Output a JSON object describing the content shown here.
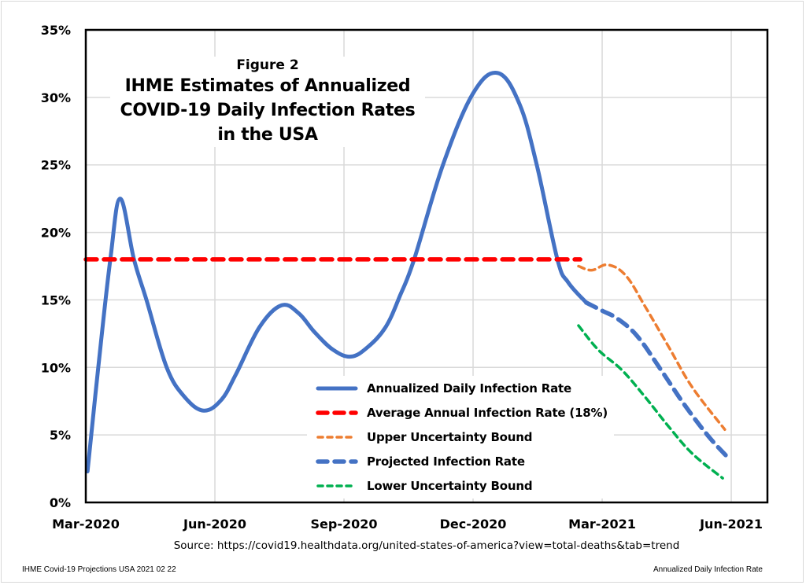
{
  "footer": {
    "source": "Source:  https://covid19.healthdata.org/united-states-of-america?view=total-deaths&tab=trend",
    "left_note": "IHME Covid-19 Projections USA 2021 02 22",
    "right_note": "Annualized Daily Infection Rate"
  },
  "chart_data": {
    "type": "line",
    "figure_label": "Figure 2",
    "title_lines": [
      "IHME Estimates of Annualized",
      "COVID-19 Daily Infection Rates",
      "in the USA"
    ],
    "title": "IHME Estimates of Annualized COVID-19 Daily Infection Rates in the USA",
    "xlabel": "",
    "ylabel": "",
    "x_unit": "months since Mar-2020",
    "x_ticks": [
      {
        "value": 0,
        "label": "Mar-2020"
      },
      {
        "value": 3,
        "label": "Jun-2020"
      },
      {
        "value": 6,
        "label": "Sep-2020"
      },
      {
        "value": 9,
        "label": "Dec-2020"
      },
      {
        "value": 12,
        "label": "Mar-2021"
      },
      {
        "value": 15,
        "label": "Jun-2021"
      }
    ],
    "xlim": [
      0,
      16.87
    ],
    "y_ticks": [
      {
        "value": 0,
        "label": "0%"
      },
      {
        "value": 5,
        "label": "5%"
      },
      {
        "value": 10,
        "label": "10%"
      },
      {
        "value": 15,
        "label": "15%"
      },
      {
        "value": 20,
        "label": "20%"
      },
      {
        "value": 25,
        "label": "25%"
      },
      {
        "value": 30,
        "label": "30%"
      },
      {
        "value": 35,
        "label": "35%"
      }
    ],
    "ylim": [
      0,
      35
    ],
    "grid": true,
    "legend_position": "bottom-center",
    "series": [
      {
        "name": "Annualized Daily Infection Rate",
        "color": "#4472C4",
        "style": "solid",
        "points": [
          [
            0.04,
            2.3
          ],
          [
            0.29,
            10.0
          ],
          [
            0.57,
            18.0
          ],
          [
            0.8,
            22.5
          ],
          [
            1.12,
            18.0
          ],
          [
            1.41,
            15.0
          ],
          [
            1.88,
            10.0
          ],
          [
            2.3,
            7.8
          ],
          [
            2.74,
            6.8
          ],
          [
            3.15,
            7.6
          ],
          [
            3.49,
            9.5
          ],
          [
            4.04,
            13.0
          ],
          [
            4.55,
            14.6
          ],
          [
            4.95,
            14.0
          ],
          [
            5.32,
            12.6
          ],
          [
            5.75,
            11.3
          ],
          [
            6.16,
            10.8
          ],
          [
            6.55,
            11.5
          ],
          [
            6.97,
            13.0
          ],
          [
            7.3,
            15.3
          ],
          [
            7.63,
            18.0
          ],
          [
            8.3,
            25.0
          ],
          [
            9.0,
            30.3
          ],
          [
            9.58,
            31.8
          ],
          [
            10.08,
            29.5
          ],
          [
            10.48,
            25.0
          ],
          [
            10.96,
            18.0
          ],
          [
            11.21,
            16.3
          ],
          [
            11.63,
            14.8
          ]
        ]
      },
      {
        "name": "Average Annual Infection Rate (18%)",
        "color": "#FF0000",
        "style": "dashed",
        "points": [
          [
            0,
            18.0
          ],
          [
            11.49,
            18.0
          ]
        ]
      },
      {
        "name": "Upper Uncertainty Bound",
        "color": "#ED7D31",
        "style": "dotted-dash",
        "points": [
          [
            11.45,
            17.5
          ],
          [
            11.76,
            17.2
          ],
          [
            12.13,
            17.6
          ],
          [
            12.55,
            16.8
          ],
          [
            13.0,
            14.5
          ],
          [
            13.55,
            11.5
          ],
          [
            14.1,
            8.5
          ],
          [
            14.85,
            5.4
          ]
        ]
      },
      {
        "name": "Projected Infection Rate",
        "color": "#4472C4",
        "style": "dashed",
        "points": [
          [
            11.63,
            14.8
          ],
          [
            12.0,
            14.2
          ],
          [
            12.36,
            13.6
          ],
          [
            12.82,
            12.3
          ],
          [
            13.37,
            9.8
          ],
          [
            13.92,
            7.2
          ],
          [
            14.47,
            4.9
          ],
          [
            14.93,
            3.3
          ]
        ]
      },
      {
        "name": "Lower Uncertainty Bound",
        "color": "#00B050",
        "style": "dotted-dash",
        "points": [
          [
            11.45,
            13.1
          ],
          [
            11.91,
            11.3
          ],
          [
            12.46,
            9.8
          ],
          [
            13.0,
            7.8
          ],
          [
            13.55,
            5.6
          ],
          [
            14.1,
            3.6
          ],
          [
            14.8,
            1.8
          ]
        ]
      }
    ]
  }
}
